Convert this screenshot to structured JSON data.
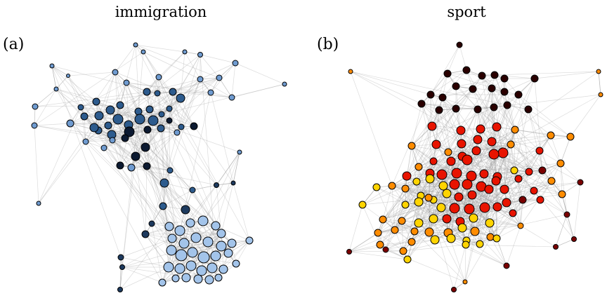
{
  "panels": [
    {
      "id": "immigration",
      "title": "immigration",
      "label": "(a)",
      "palette": {
        "light": "#a3c4ea",
        "mid": "#6f9bd0",
        "dark": "#2d5b8d",
        "darker": "#1d3a5e",
        "darkest": "#0c1a31"
      }
    },
    {
      "id": "sport",
      "title": "sport",
      "label": "(b)",
      "palette": {
        "yellow": "#ffd400",
        "orange": "#ff8c00",
        "red": "#e81400",
        "darkred": "#7a0000",
        "brown": "#2a0000"
      }
    }
  ]
}
